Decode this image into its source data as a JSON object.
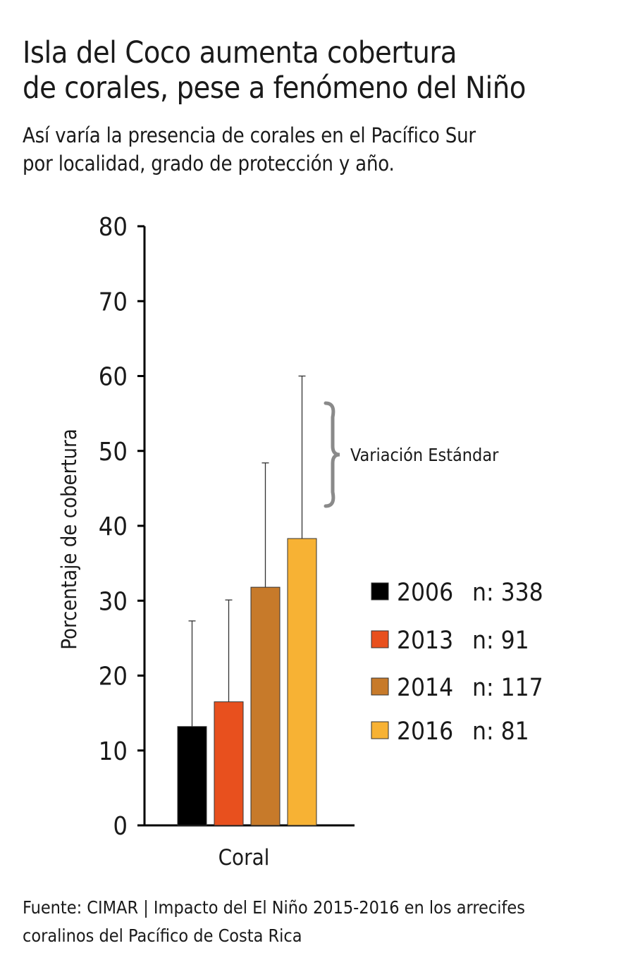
{
  "title_line1": "Isla del Coco aumenta cobertura",
  "title_line2": "de corales, pese a fenómeno del Niño",
  "subtitle_line1": "Así varía la presencia de corales en el Pacífico Sur",
  "subtitle_line2": "por localidad, grado de protección y año.",
  "source_line1": "Fuente: CIMAR | Impacto del El Niño 2015-2016 en los arrecifes",
  "source_line2": "coralinos del Pacífico de Costa Rica",
  "chart_data": {
    "type": "bar",
    "categories": [
      "Coral"
    ],
    "ylabel": "Porcentaje de cobertura",
    "xlabel": "",
    "ylim": [
      0,
      80
    ],
    "yticks": [
      0,
      10,
      20,
      30,
      40,
      50,
      60,
      70,
      80
    ],
    "grid": false,
    "legend_position": "right",
    "error_bar_annotation": "Variación Estándar",
    "series": [
      {
        "name": "2006",
        "n_label": "n: 338",
        "values": [
          13.2
        ],
        "error_top": [
          27.3
        ],
        "color": "#000000"
      },
      {
        "name": "2013",
        "n_label": "n: 91",
        "values": [
          16.5
        ],
        "error_top": [
          30.1
        ],
        "color": "#e8501e"
      },
      {
        "name": "2014",
        "n_label": "n: 117",
        "values": [
          31.8
        ],
        "error_top": [
          48.4
        ],
        "color": "#c77a2a"
      },
      {
        "name": "2016",
        "n_label": "n: 81",
        "values": [
          38.3
        ],
        "error_top": [
          60.0
        ],
        "color": "#f7b234"
      }
    ]
  }
}
